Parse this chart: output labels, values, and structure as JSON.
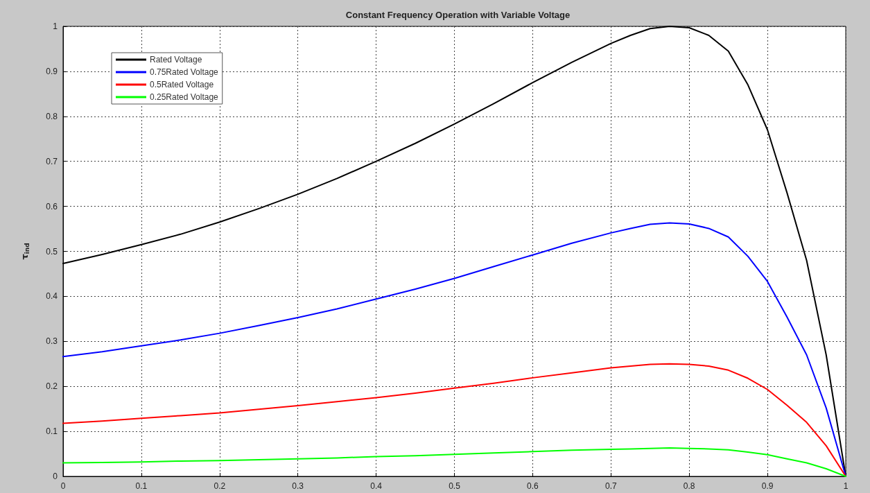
{
  "chart_data": {
    "type": "line",
    "title": "Constant Frequency Operation with Variable Voltage",
    "ylabel": "τ$_{ind}$",
    "x": [
      0,
      0.05,
      0.1,
      0.15,
      0.2,
      0.25,
      0.3,
      0.35,
      0.4,
      0.45,
      0.5,
      0.55,
      0.6,
      0.65,
      0.7,
      0.725,
      0.75,
      0.775,
      0.8,
      0.825,
      0.85,
      0.875,
      0.9,
      0.925,
      0.95,
      0.975,
      1
    ],
    "series": [
      {
        "name": "Rated Voltage",
        "color": "#000000",
        "values": [
          0.473,
          0.493,
          0.515,
          0.538,
          0.565,
          0.595,
          0.627,
          0.662,
          0.7,
          0.74,
          0.783,
          0.828,
          0.875,
          0.92,
          0.962,
          0.98,
          0.995,
          1.0,
          0.997,
          0.98,
          0.945,
          0.87,
          0.77,
          0.63,
          0.48,
          0.27,
          0
        ]
      },
      {
        "name": "0.75Rated Voltage",
        "color": "#0000ff",
        "values": [
          0.266,
          0.277,
          0.29,
          0.303,
          0.318,
          0.335,
          0.353,
          0.372,
          0.394,
          0.416,
          0.44,
          0.466,
          0.492,
          0.518,
          0.541,
          0.551,
          0.56,
          0.563,
          0.561,
          0.551,
          0.532,
          0.489,
          0.433,
          0.354,
          0.27,
          0.152,
          0
        ]
      },
      {
        "name": "0.5Rated Voltage",
        "color": "#ff0000",
        "values": [
          0.118,
          0.123,
          0.129,
          0.135,
          0.141,
          0.149,
          0.157,
          0.166,
          0.175,
          0.185,
          0.196,
          0.207,
          0.219,
          0.23,
          0.241,
          0.245,
          0.249,
          0.25,
          0.249,
          0.245,
          0.236,
          0.218,
          0.193,
          0.158,
          0.12,
          0.068,
          0
        ]
      },
      {
        "name": "0.25Rated Voltage",
        "color": "#00ff00",
        "values": [
          0.03,
          0.031,
          0.032,
          0.034,
          0.035,
          0.037,
          0.039,
          0.041,
          0.044,
          0.046,
          0.049,
          0.052,
          0.055,
          0.058,
          0.06,
          0.061,
          0.062,
          0.063,
          0.062,
          0.061,
          0.059,
          0.054,
          0.048,
          0.039,
          0.03,
          0.017,
          0
        ]
      }
    ],
    "xlim": [
      0,
      1
    ],
    "ylim": [
      0,
      1
    ],
    "xticks": [
      0,
      0.1,
      0.2,
      0.3,
      0.4,
      0.5,
      0.6,
      0.7,
      0.8,
      0.9,
      1
    ],
    "yticks": [
      0,
      0.1,
      0.2,
      0.3,
      0.4,
      0.5,
      0.6,
      0.7,
      0.8,
      0.9,
      1
    ],
    "grid": true,
    "legend": "top left"
  }
}
